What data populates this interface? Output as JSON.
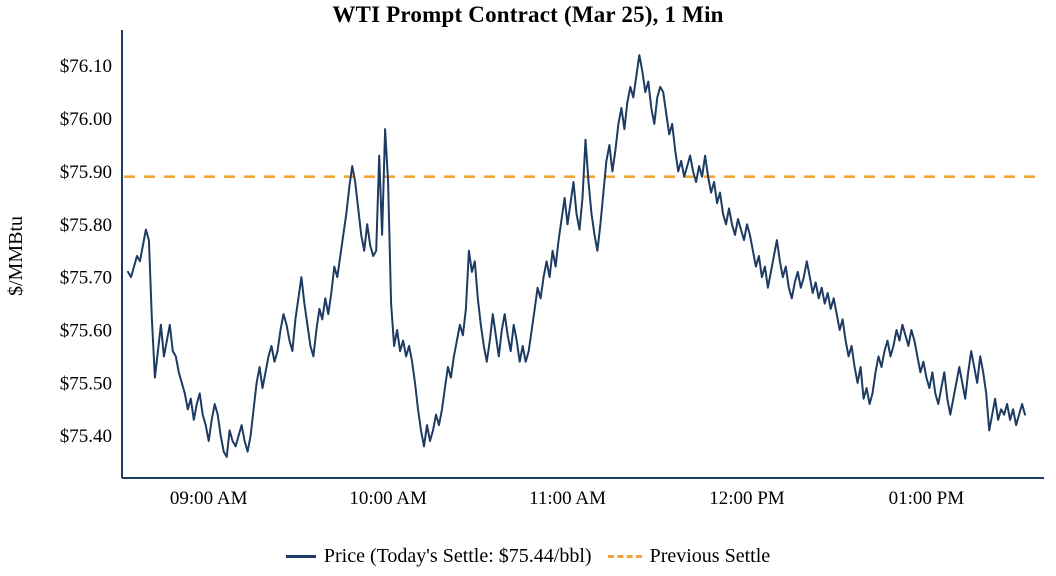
{
  "title": "WTI Prompt Contract (Mar 25), 1 Min",
  "colors": {
    "price_line": "#1d3b63",
    "previous_settle_line": "#f0a43a",
    "axis": "#1d3b63",
    "tick_text": "#000000"
  },
  "chart_data": {
    "type": "line",
    "title": "WTI Prompt Contract (Mar 25), 1 Min",
    "xlabel": "",
    "ylabel": "$/MMBtu",
    "grid": false,
    "legend_position": "bottom",
    "ylim": [
      75.32,
      76.16
    ],
    "x_domain_minutes": [
      511,
      818
    ],
    "yticks": [
      {
        "value": 75.4,
        "label": "$75.40"
      },
      {
        "value": 75.5,
        "label": "$75.50"
      },
      {
        "value": 75.6,
        "label": "$75.60"
      },
      {
        "value": 75.7,
        "label": "$75.70"
      },
      {
        "value": 75.8,
        "label": "$75.80"
      },
      {
        "value": 75.9,
        "label": "$75.90"
      },
      {
        "value": 76.0,
        "label": "$76.00"
      },
      {
        "value": 76.1,
        "label": "$76.10"
      }
    ],
    "xticks": [
      {
        "minute": 540,
        "label": "09:00 AM"
      },
      {
        "minute": 600,
        "label": "10:00 AM"
      },
      {
        "minute": 660,
        "label": "11:00 AM"
      },
      {
        "minute": 720,
        "label": "12:00 PM"
      },
      {
        "minute": 780,
        "label": "01:00 PM"
      }
    ],
    "previous_settle": 75.89,
    "todays_settle_label": "$75.44/bbl",
    "legend": [
      {
        "label": "Price (Today's Settle: $75.44/bbl)",
        "swatch": "solid-line"
      },
      {
        "label": "Previous Settle",
        "swatch": "dashed-line"
      }
    ],
    "series": [
      {
        "name": "Price",
        "start_minute": 513,
        "interval_minutes": 1,
        "values": [
          75.71,
          75.7,
          75.72,
          75.74,
          75.73,
          75.76,
          75.79,
          75.77,
          75.62,
          75.51,
          75.56,
          75.61,
          75.55,
          75.58,
          75.61,
          75.56,
          75.55,
          75.52,
          75.5,
          75.48,
          75.45,
          75.47,
          75.43,
          75.46,
          75.48,
          75.44,
          75.42,
          75.39,
          75.43,
          75.46,
          75.44,
          75.4,
          75.37,
          75.36,
          75.41,
          75.39,
          75.38,
          75.4,
          75.42,
          75.39,
          75.37,
          75.4,
          75.45,
          75.5,
          75.53,
          75.49,
          75.52,
          75.55,
          75.57,
          75.54,
          75.56,
          75.6,
          75.63,
          75.61,
          75.58,
          75.56,
          75.62,
          75.66,
          75.7,
          75.65,
          75.61,
          75.57,
          75.55,
          75.6,
          75.64,
          75.62,
          75.66,
          75.63,
          75.67,
          75.72,
          75.7,
          75.74,
          75.78,
          75.82,
          75.87,
          75.91,
          75.88,
          75.83,
          75.78,
          75.75,
          75.8,
          75.76,
          75.74,
          75.75,
          75.93,
          75.78,
          75.98,
          75.88,
          75.65,
          75.57,
          75.6,
          75.56,
          75.58,
          75.55,
          75.57,
          75.54,
          75.5,
          75.45,
          75.41,
          75.38,
          75.42,
          75.39,
          75.41,
          75.44,
          75.42,
          75.45,
          75.49,
          75.53,
          75.51,
          75.55,
          75.58,
          75.61,
          75.59,
          75.64,
          75.75,
          75.71,
          75.73,
          75.66,
          75.61,
          75.57,
          75.54,
          75.58,
          75.63,
          75.59,
          75.55,
          75.6,
          75.63,
          75.59,
          75.56,
          75.61,
          75.58,
          75.54,
          75.57,
          75.54,
          75.56,
          75.6,
          75.64,
          75.68,
          75.66,
          75.7,
          75.73,
          75.7,
          75.75,
          75.72,
          75.77,
          75.81,
          75.85,
          75.8,
          75.84,
          75.88,
          75.82,
          75.79,
          75.85,
          75.96,
          75.88,
          75.82,
          75.78,
          75.75,
          75.8,
          75.86,
          75.92,
          75.95,
          75.9,
          75.94,
          75.99,
          76.02,
          75.98,
          76.03,
          76.06,
          76.04,
          76.08,
          76.12,
          76.09,
          76.05,
          76.07,
          76.02,
          75.99,
          76.04,
          76.06,
          76.05,
          76.01,
          75.97,
          75.99,
          75.94,
          75.9,
          75.92,
          75.89,
          75.91,
          75.93,
          75.9,
          75.88,
          75.91,
          75.89,
          75.93,
          75.89,
          75.86,
          75.88,
          75.84,
          75.86,
          75.82,
          75.8,
          75.83,
          75.8,
          75.78,
          75.81,
          75.79,
          75.77,
          75.8,
          75.78,
          75.75,
          75.72,
          75.74,
          75.7,
          75.72,
          75.68,
          75.71,
          75.74,
          75.77,
          75.73,
          75.7,
          75.72,
          75.68,
          75.66,
          75.69,
          75.71,
          75.68,
          75.7,
          75.73,
          75.7,
          75.67,
          75.69,
          75.66,
          75.68,
          75.65,
          75.67,
          75.64,
          75.66,
          75.63,
          75.6,
          75.62,
          75.58,
          75.55,
          75.57,
          75.53,
          75.5,
          75.53,
          75.47,
          75.49,
          75.46,
          75.48,
          75.52,
          75.55,
          75.53,
          75.56,
          75.58,
          75.55,
          75.57,
          75.6,
          75.58,
          75.61,
          75.59,
          75.57,
          75.6,
          75.58,
          75.55,
          75.52,
          75.54,
          75.51,
          75.49,
          75.52,
          75.48,
          75.46,
          75.49,
          75.52,
          75.47,
          75.44,
          75.47,
          75.5,
          75.53,
          75.5,
          75.47,
          75.52,
          75.56,
          75.53,
          75.5,
          75.55,
          75.52,
          75.48,
          75.41,
          75.44,
          75.47,
          75.43,
          75.45,
          75.44,
          75.46,
          75.43,
          75.45,
          75.42,
          75.44,
          75.46,
          75.44
        ]
      }
    ]
  }
}
